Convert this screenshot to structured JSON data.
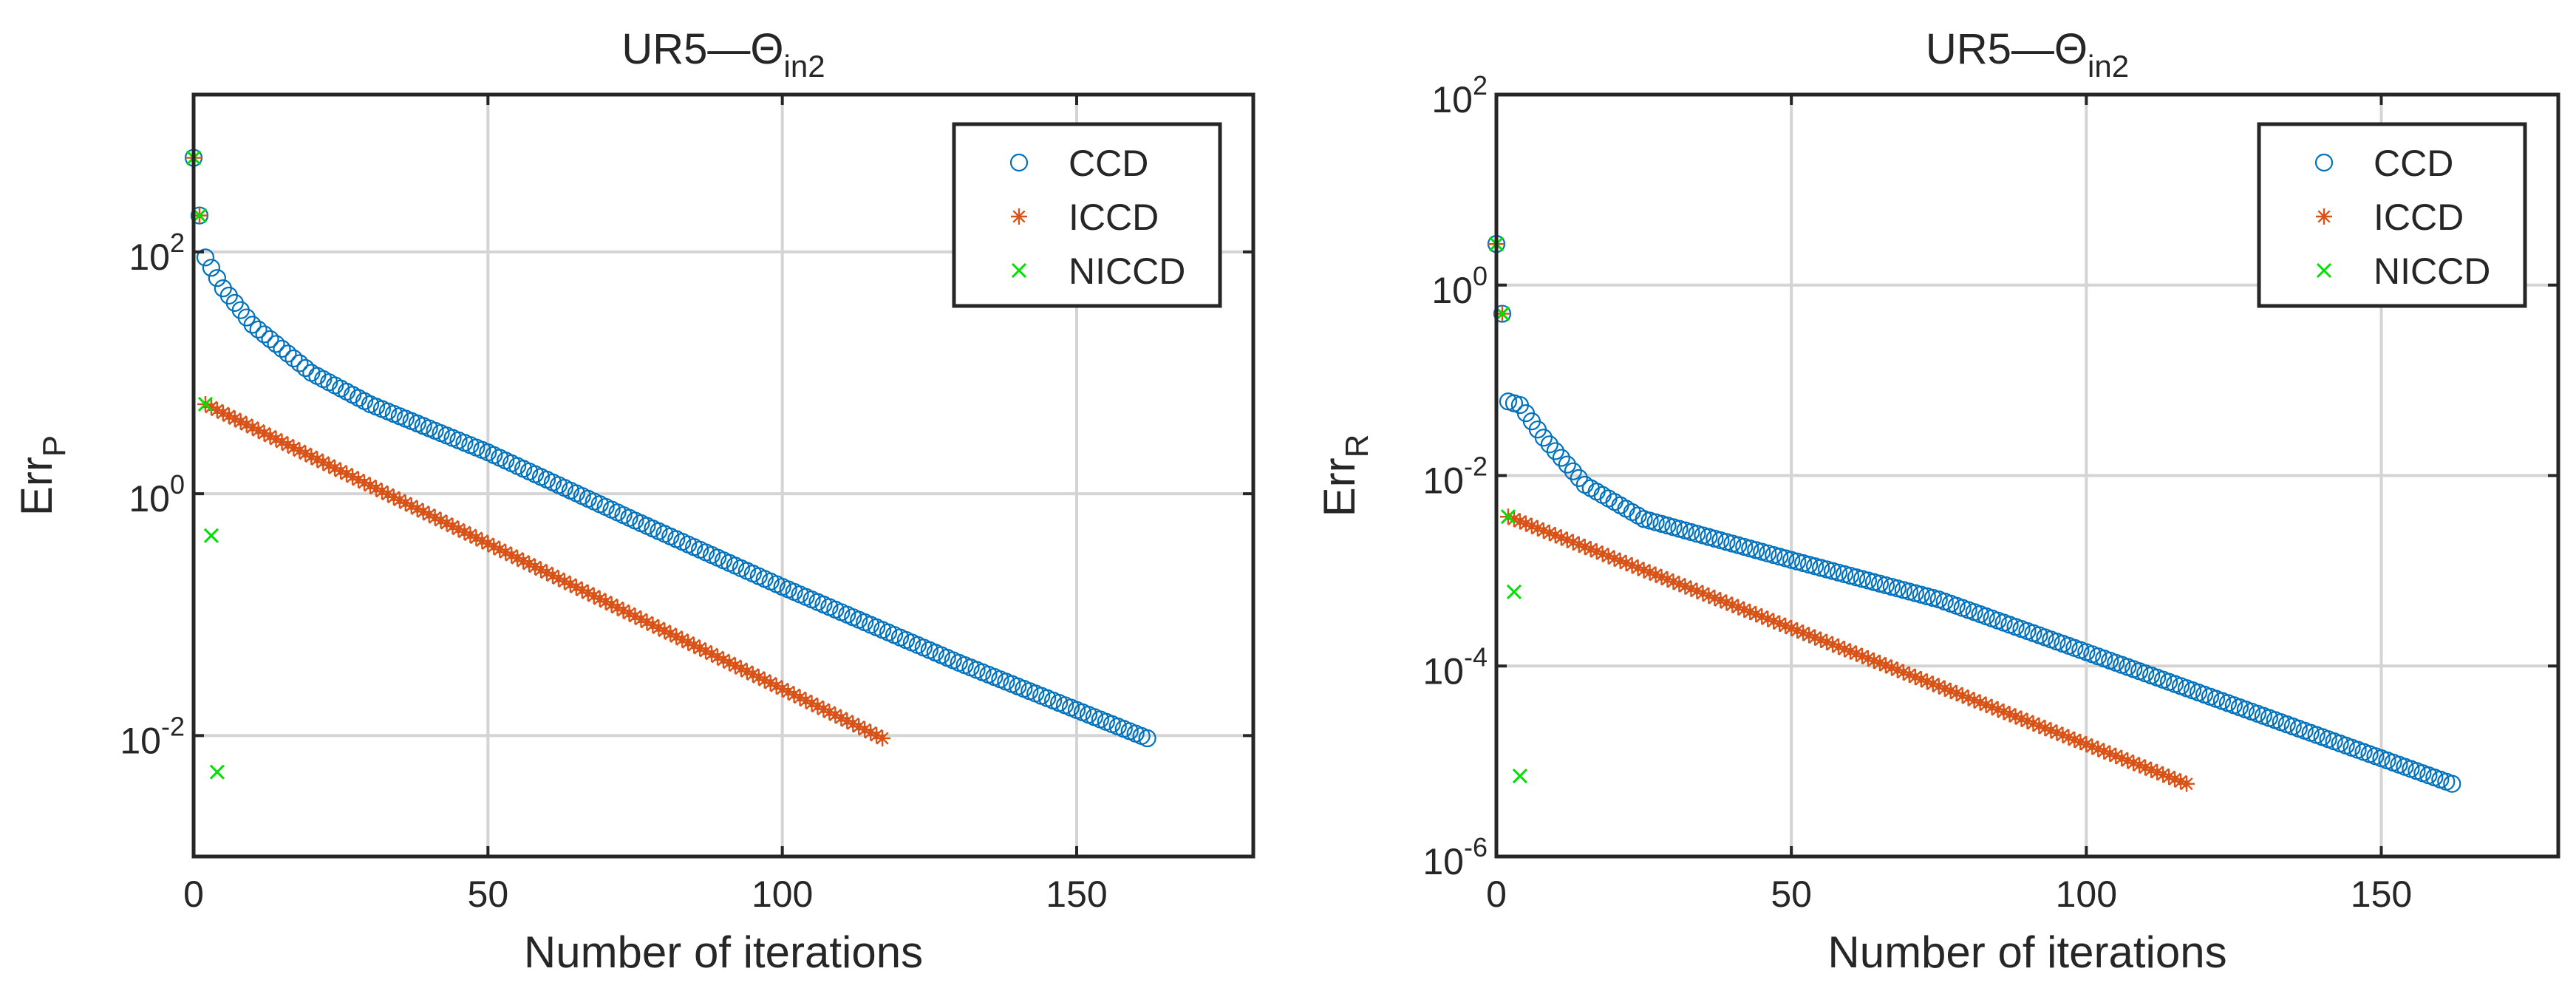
{
  "chart_data": [
    {
      "type": "scatter",
      "title": "UR5—Θ",
      "title_subscript": "in2",
      "xlabel": "Number of iterations",
      "ylabel": "Err",
      "ylabel_subscript": "P",
      "xlim": [
        0,
        180
      ],
      "ylim": [
        0.001,
        2000
      ],
      "yscale": "log",
      "grid": true,
      "xticks": [
        0,
        50,
        100,
        150
      ],
      "xtick_labels": [
        "0",
        "50",
        "100",
        "150"
      ],
      "yticks": [
        0.01,
        1,
        100
      ],
      "ytick_labels": [
        {
          "base": "10",
          "exp": "-2"
        },
        {
          "base": "10",
          "exp": "0"
        },
        {
          "base": "10",
          "exp": "2"
        }
      ],
      "legend_position": "top-right",
      "series": [
        {
          "name": "CCD",
          "marker": "circle",
          "color": "#0072BD",
          "x_start": 0,
          "x_end": 162,
          "anchors": [
            [
              0,
              600
            ],
            [
              1,
              200
            ],
            [
              2,
              90
            ],
            [
              5,
              50
            ],
            [
              10,
              25
            ],
            [
              20,
              10
            ],
            [
              30,
              5.5
            ],
            [
              50,
              2.2
            ],
            [
              75,
              0.6
            ],
            [
              100,
              0.17
            ],
            [
              130,
              0.04
            ],
            [
              162,
              0.0095
            ]
          ]
        },
        {
          "name": "ICCD",
          "marker": "asterisk",
          "color": "#D95319",
          "x_start": 0,
          "x_end": 117,
          "anchors": [
            [
              0,
              600
            ],
            [
              1,
              200
            ],
            [
              2,
              5.5
            ],
            [
              117,
              0.0095
            ]
          ]
        },
        {
          "name": "NICCD",
          "marker": "cross",
          "color": "#00E000",
          "points": [
            [
              0,
              600
            ],
            [
              1,
              200
            ],
            [
              2,
              5.5
            ],
            [
              3,
              0.45
            ],
            [
              4,
              0.005
            ]
          ]
        }
      ]
    },
    {
      "type": "scatter",
      "title": "UR5—Θ",
      "title_subscript": "in2",
      "xlabel": "Number of iterations",
      "ylabel": "Err",
      "ylabel_subscript": "R",
      "xlim": [
        0,
        180
      ],
      "ylim": [
        1e-06,
        100
      ],
      "yscale": "log",
      "grid": true,
      "xticks": [
        0,
        50,
        100,
        150
      ],
      "xtick_labels": [
        "0",
        "50",
        "100",
        "150"
      ],
      "yticks": [
        1e-06,
        0.0001,
        0.01,
        1,
        100
      ],
      "ytick_labels": [
        {
          "base": "10",
          "exp": "-6"
        },
        {
          "base": "10",
          "exp": "-4"
        },
        {
          "base": "10",
          "exp": "-2"
        },
        {
          "base": "10",
          "exp": "0"
        },
        {
          "base": "10",
          "exp": "2"
        }
      ],
      "legend_position": "top-right",
      "series": [
        {
          "name": "CCD",
          "marker": "circle",
          "color": "#0072BD",
          "x_start": 0,
          "x_end": 162,
          "anchors": [
            [
              0,
              2.7
            ],
            [
              1,
              0.5
            ],
            [
              2,
              0.06
            ],
            [
              4,
              0.055
            ],
            [
              8,
              0.025
            ],
            [
              15,
              0.008
            ],
            [
              25,
              0.0035
            ],
            [
              50,
              0.0013
            ],
            [
              75,
              0.0005
            ],
            [
              100,
              0.00014
            ],
            [
              130,
              3e-05
            ],
            [
              162,
              5.8e-06
            ]
          ]
        },
        {
          "name": "ICCD",
          "marker": "asterisk",
          "color": "#D95319",
          "x_start": 0,
          "x_end": 117,
          "anchors": [
            [
              0,
              2.7
            ],
            [
              1,
              0.5
            ],
            [
              2,
              0.0037
            ],
            [
              117,
              5.8e-06
            ]
          ]
        },
        {
          "name": "NICCD",
          "marker": "cross",
          "color": "#00E000",
          "points": [
            [
              0,
              2.7
            ],
            [
              1,
              0.5
            ],
            [
              2,
              0.0037
            ],
            [
              3,
              0.0006
            ],
            [
              4,
              7e-06
            ]
          ]
        }
      ]
    }
  ]
}
